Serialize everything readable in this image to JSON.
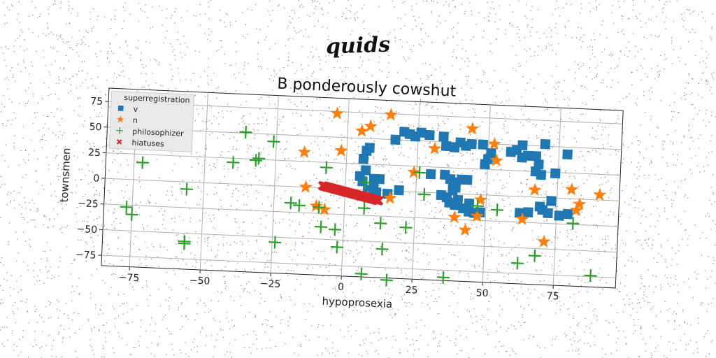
{
  "suptitle": "quids",
  "chart_data": {
    "type": "scatter",
    "title": "B ponderously cowshut",
    "xlabel": "hypoprosexia",
    "ylabel": "townsmen",
    "xlim": [
      -85,
      97
    ],
    "ylim": [
      -85,
      88
    ],
    "xticks": [
      -75,
      -50,
      -25,
      0,
      25,
      50,
      75
    ],
    "yticks": [
      -75,
      -50,
      -25,
      0,
      25,
      50,
      75
    ],
    "xtick_labels": [
      "−75",
      "−50",
      "−25",
      "0",
      "25",
      "50",
      "75"
    ],
    "ytick_labels": [
      "−75",
      "−50",
      "−25",
      "0",
      "25",
      "50",
      "75"
    ],
    "grid": true,
    "rotation_deg": 2.5,
    "legend": {
      "title": "superregistration",
      "position": "top-left"
    },
    "series": [
      {
        "name": "v",
        "marker": "square",
        "color": "#1f77b4",
        "points": [
          [
            8,
            41
          ],
          [
            7,
            38
          ],
          [
            6,
            30
          ],
          [
            7,
            19
          ],
          [
            5,
            13
          ],
          [
            6,
            8
          ],
          [
            10,
            11
          ],
          [
            12,
            11
          ],
          [
            10,
            5
          ],
          [
            8,
            0
          ],
          [
            11,
            -2
          ],
          [
            15,
            -3
          ],
          [
            19,
            1
          ],
          [
            17,
            50
          ],
          [
            20,
            58
          ],
          [
            22,
            56
          ],
          [
            24,
            54
          ],
          [
            26,
            58
          ],
          [
            29,
            56
          ],
          [
            34,
            55
          ],
          [
            35,
            46
          ],
          [
            38,
            45
          ],
          [
            40,
            50
          ],
          [
            42,
            47
          ],
          [
            44,
            49
          ],
          [
            48,
            49
          ],
          [
            50,
            35
          ],
          [
            49,
            30
          ],
          [
            51,
            41
          ],
          [
            58,
            43
          ],
          [
            60,
            45
          ],
          [
            62,
            50
          ],
          [
            62,
            38
          ],
          [
            64,
            40
          ],
          [
            67,
            40
          ],
          [
            68,
            32
          ],
          [
            70,
            52
          ],
          [
            67,
            25
          ],
          [
            69,
            22
          ],
          [
            74,
            24
          ],
          [
            78,
            43
          ],
          [
            30,
            18
          ],
          [
            35,
            18
          ],
          [
            37,
            14
          ],
          [
            38,
            11
          ],
          [
            41,
            14
          ],
          [
            43,
            14
          ],
          [
            39,
            6
          ],
          [
            38,
            3
          ],
          [
            34,
            -2
          ],
          [
            36,
            -4
          ],
          [
            37,
            -9
          ],
          [
            39,
            -11
          ],
          [
            42,
            -14
          ],
          [
            44,
            -17
          ],
          [
            46,
            -18
          ],
          [
            48,
            -17
          ],
          [
            40,
            -6
          ],
          [
            44,
            -9
          ],
          [
            62,
            -16
          ],
          [
            65,
            -15
          ],
          [
            69,
            -9
          ],
          [
            70,
            -12
          ],
          [
            73,
            -3
          ],
          [
            72,
            -15
          ],
          [
            76,
            -17
          ],
          [
            79,
            -15
          ]
        ]
      },
      {
        "name": "n",
        "marker": "star",
        "color": "#ff7f0e",
        "points": [
          [
            -4,
            73
          ],
          [
            5,
            57
          ],
          [
            8,
            62
          ],
          [
            15,
            74
          ],
          [
            44,
            64
          ],
          [
            52,
            50
          ],
          [
            31,
            43
          ],
          [
            53,
            34
          ],
          [
            24,
            19
          ],
          [
            -15,
            34
          ],
          [
            -2,
            37
          ],
          [
            -14,
            0
          ],
          [
            -10,
            -18
          ],
          [
            -7,
            -21
          ],
          [
            8,
            -7
          ],
          [
            16,
            -7
          ],
          [
            39,
            -23
          ],
          [
            43,
            -35
          ],
          [
            47,
            -21
          ],
          [
            48,
            -5
          ],
          [
            63,
            -22
          ],
          [
            67,
            7
          ],
          [
            71,
            -43
          ],
          [
            80,
            9
          ],
          [
            82,
            -11
          ],
          [
            83,
            -5
          ],
          [
            90,
            5
          ]
        ]
      },
      {
        "name": "philosophizer",
        "marker": "plus",
        "color": "#2ca02c",
        "points": [
          [
            -72,
            17
          ],
          [
            -77,
            -27
          ],
          [
            -75,
            -34
          ],
          [
            -56,
            -7
          ],
          [
            -56,
            -58
          ],
          [
            -56,
            -60
          ],
          [
            -40,
            21
          ],
          [
            -36,
            51
          ],
          [
            -31,
            26
          ],
          [
            -32,
            24
          ],
          [
            -26,
            43
          ],
          [
            -24,
            -55
          ],
          [
            -19,
            -16
          ],
          [
            -16,
            -18
          ],
          [
            -9,
            -19
          ],
          [
            -7,
            20
          ],
          [
            -8,
            -38
          ],
          [
            -3,
            -40
          ],
          [
            -2,
            -57
          ],
          [
            7,
            7
          ],
          [
            7,
            -18
          ],
          [
            7,
            -82
          ],
          [
            13,
            -32
          ],
          [
            14,
            -57
          ],
          [
            16,
            -87
          ],
          [
            22,
            -35
          ],
          [
            26,
            19
          ],
          [
            28,
            -2
          ],
          [
            36,
            -82
          ],
          [
            62,
            -65
          ],
          [
            68,
            -57
          ],
          [
            81,
            -24
          ],
          [
            88,
            -74
          ],
          [
            47,
            -11
          ],
          [
            54,
            -14
          ]
        ]
      },
      {
        "name": "hiatuses",
        "marker": "x",
        "color": "#d62728",
        "segment": {
          "from": [
            -8,
            2
          ],
          "to": [
            12,
            -10
          ],
          "count": 60
        }
      }
    ]
  }
}
